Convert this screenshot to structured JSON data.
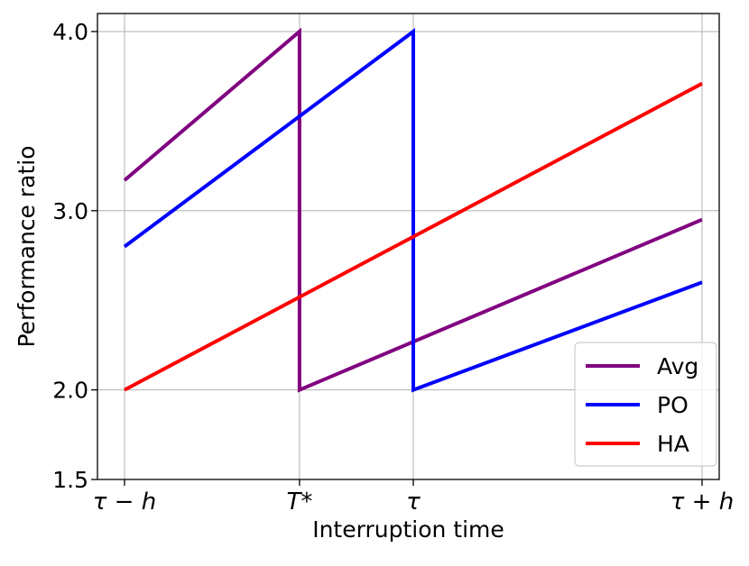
{
  "chart_data": {
    "type": "line",
    "xlabel": "Interruption time",
    "ylabel": "Performance ratio",
    "xlim": [
      0,
      10
    ],
    "ylim": [
      1.5,
      4.0
    ],
    "grid": true,
    "legend_position": "lower-right",
    "x_ticks": [
      {
        "value": 0,
        "label": "τ − h"
      },
      {
        "value": 3.03,
        "label": "T*"
      },
      {
        "value": 5.0,
        "label": "τ"
      },
      {
        "value": 10,
        "label": "τ + h"
      }
    ],
    "y_ticks": [
      {
        "value": 1.5,
        "label": "1.5"
      },
      {
        "value": 2.0,
        "label": "2.0"
      },
      {
        "value": 3.0,
        "label": "3.0"
      },
      {
        "value": 4.0,
        "label": "4.0"
      }
    ],
    "series": [
      {
        "name": "Avg",
        "color": "#800080",
        "points": [
          [
            0,
            3.17
          ],
          [
            3.03,
            4.0
          ],
          [
            3.03,
            2.0
          ],
          [
            10,
            2.95
          ]
        ]
      },
      {
        "name": "PO",
        "color": "#0000ff",
        "points": [
          [
            0,
            2.8
          ],
          [
            5.0,
            4.0
          ],
          [
            5.0,
            2.0
          ],
          [
            10,
            2.6
          ]
        ]
      },
      {
        "name": "HA",
        "color": "#ff0000",
        "points": [
          [
            0,
            2.0
          ],
          [
            10,
            3.71
          ]
        ]
      }
    ]
  }
}
